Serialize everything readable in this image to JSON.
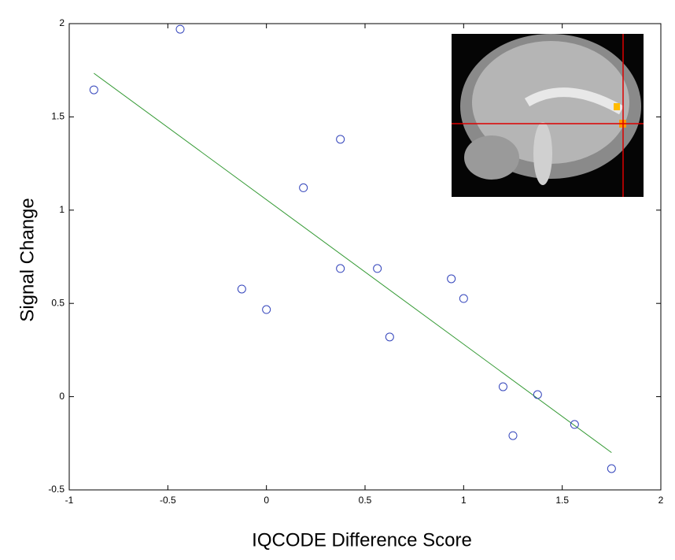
{
  "chart_data": {
    "type": "scatter",
    "x_label": "IQCODE Difference Score",
    "y_label": "Signal Change",
    "xlim": [
      -1,
      2
    ],
    "xticks": [
      -1,
      -0.5,
      0,
      0.5,
      1,
      1.5,
      2
    ],
    "ylim": [
      -0.5,
      2
    ],
    "yticks": [
      -0.5,
      0,
      0.5,
      1,
      1.5,
      2
    ],
    "series": [
      {
        "color": "#3344bb",
        "x": [
          -0.875,
          -0.4375,
          -0.125,
          0,
          0.1875,
          0.375,
          0.375,
          0.5625,
          0.625,
          0.9375,
          1.0,
          1.2,
          1.25,
          1.375,
          1.5625,
          1.75
        ],
        "values": [
          1.645,
          1.97,
          0.577,
          0.467,
          1.12,
          1.38,
          0.687,
          0.687,
          0.32,
          0.632,
          0.526,
          0.053,
          -0.209,
          0.011,
          -0.149,
          -0.386
        ]
      }
    ],
    "fit_line": {
      "color": "#339933",
      "x": [
        -0.875,
        1.75
      ],
      "values": [
        1.734,
        -0.3
      ]
    }
  }
}
